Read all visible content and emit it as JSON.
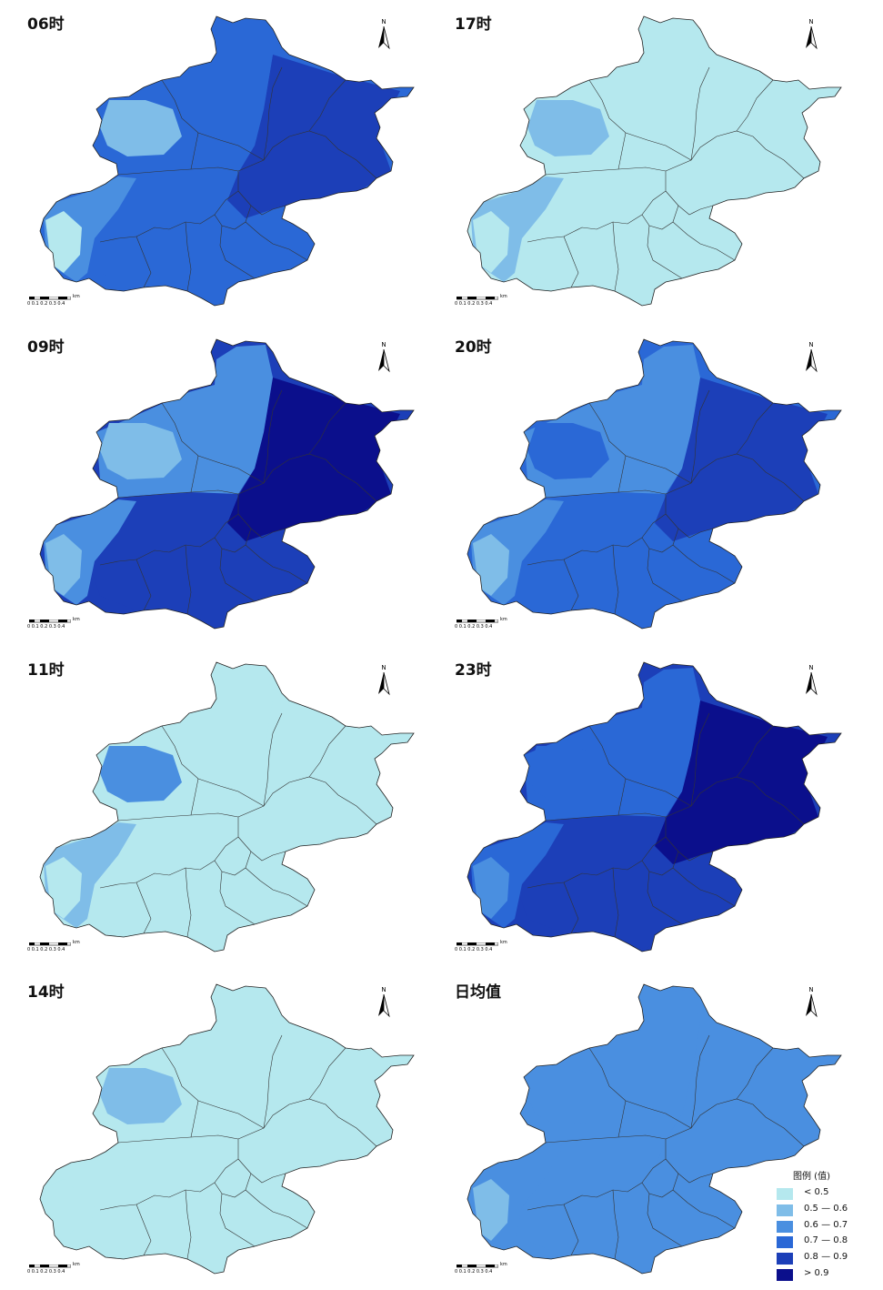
{
  "panels": [
    {
      "id": "p06",
      "title": "06时",
      "zones": [
        "z5",
        "z4",
        "z4",
        "z3",
        "z2",
        "z1"
      ]
    },
    {
      "id": "p17",
      "title": "17时",
      "zones": [
        "z1",
        "z1",
        "z1",
        "z2",
        "z2",
        "z1"
      ]
    },
    {
      "id": "p09",
      "title": "09时",
      "zones": [
        "z6",
        "z5",
        "z3",
        "z3",
        "z2",
        "z2"
      ]
    },
    {
      "id": "p20",
      "title": "20时",
      "zones": [
        "z5",
        "z4",
        "z3",
        "z3",
        "z4",
        "z2"
      ]
    },
    {
      "id": "p11",
      "title": "11时",
      "zones": [
        "z1",
        "z1",
        "z1",
        "z2",
        "z3",
        "z1"
      ]
    },
    {
      "id": "p23",
      "title": "23时",
      "zones": [
        "z6",
        "z5",
        "z4",
        "z4",
        "z4",
        "z3"
      ]
    },
    {
      "id": "p14",
      "title": "14时",
      "zones": [
        "z1",
        "z1",
        "z1",
        "z1",
        "z2",
        "z1"
      ]
    },
    {
      "id": "pavg",
      "title": "日均值",
      "zones": [
        "z3",
        "z3",
        "z3",
        "z3",
        "z3",
        "z2"
      ]
    }
  ],
  "north_label": "N",
  "scale": {
    "unit": "km",
    "ticks": "0  0.1 0.2 0.3 0.4"
  },
  "legend": {
    "title": "图例 (值)",
    "items": [
      {
        "label": "< 0.5",
        "color": "#b5e8ee"
      },
      {
        "label": "0.5 — 0.6",
        "color": "#7fbde8"
      },
      {
        "label": "0.6 — 0.7",
        "color": "#4a8fe0"
      },
      {
        "label": "0.7 — 0.8",
        "color": "#2a68d6"
      },
      {
        "label": "0.8 — 0.9",
        "color": "#1c3fb8"
      },
      {
        "label": "> 0.9",
        "color": "#0b0f8c"
      }
    ]
  },
  "colors": {
    "z1": "#b5e8ee",
    "z2": "#7fbde8",
    "z3": "#4a8fe0",
    "z4": "#2a68d6",
    "z5": "#1c3fb8",
    "z6": "#0b0f8c"
  }
}
